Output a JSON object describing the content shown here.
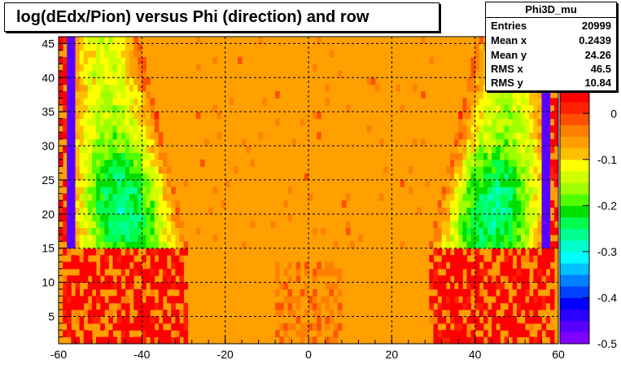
{
  "chart_data": {
    "type": "heatmap",
    "title": "log(dEdx/Pion) versus Phi (direction) and row",
    "xlabel": "",
    "ylabel": "",
    "xlim": [
      -60,
      60
    ],
    "ylim": [
      1,
      46
    ],
    "x_ticks": [
      -60,
      -40,
      -20,
      0,
      20,
      40,
      60
    ],
    "y_ticks": [
      5,
      10,
      15,
      20,
      25,
      30,
      35,
      40,
      45
    ],
    "grid": true,
    "background_value": 0.02,
    "palette": [
      "#8000ff",
      "#5a00ff",
      "#2a00ff",
      "#0000ff",
      "#0040ff",
      "#0080ff",
      "#00c0ff",
      "#00ffff",
      "#00ffcc",
      "#00ff90",
      "#00ff50",
      "#00e000",
      "#50ff00",
      "#a0ff00",
      "#d0ff00",
      "#ffff00",
      "#ffc000",
      "#ffa000",
      "#ff8000",
      "#ff5000",
      "#ff2000",
      "#ff0000"
    ],
    "colorbar": {
      "min": -0.5,
      "max": 0.05,
      "labels": [
        "0",
        "-0.1",
        "-0.2",
        "-0.3",
        "-0.4",
        "-0.5"
      ],
      "label_values": [
        0,
        -0.1,
        -0.2,
        -0.3,
        -0.4,
        -0.5
      ]
    }
  },
  "stats": {
    "name": "Phi3D_mu",
    "rows": [
      {
        "label": "Entries",
        "value": "20999"
      },
      {
        "label": "Mean x",
        "value": "0.2439"
      },
      {
        "label": "Mean y",
        "value": "24.26"
      },
      {
        "label": "RMS x",
        "value": "46.5"
      },
      {
        "label": "RMS y",
        "value": "10.84"
      }
    ]
  }
}
